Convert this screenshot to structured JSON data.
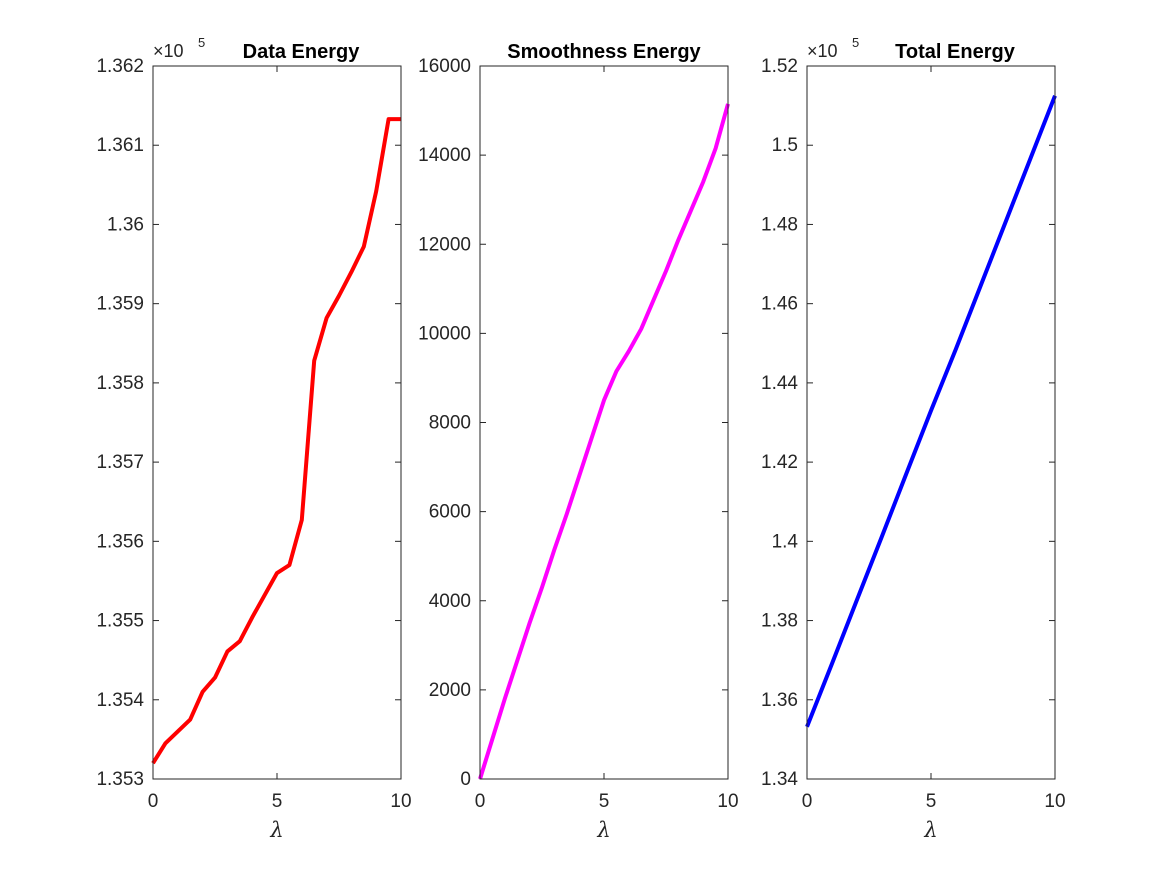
{
  "chart_data": [
    {
      "type": "line",
      "title": "Data Energy",
      "xlabel": "λ",
      "ylabel": "",
      "exponent_label": "×10",
      "exponent_power": "5",
      "color": "#ff0000",
      "xlim": [
        0,
        10
      ],
      "ylim": [
        135300,
        136200
      ],
      "x_ticks": [
        0,
        5,
        10
      ],
      "x_tick_labels": [
        "0",
        "5",
        "10"
      ],
      "y_ticks": [
        135300,
        135400,
        135500,
        135600,
        135700,
        135800,
        135900,
        136000,
        136100,
        136200
      ],
      "y_tick_labels": [
        "1.353",
        "1.354",
        "1.355",
        "1.356",
        "1.357",
        "1.358",
        "1.359",
        "1.36",
        "1.361",
        "1.362"
      ],
      "x": [
        0,
        0.5,
        1,
        1.5,
        2,
        2.5,
        3,
        3.5,
        4,
        4.5,
        5,
        5.5,
        6,
        6.5,
        7,
        7.5,
        8,
        8.5,
        9,
        9.5,
        10
      ],
      "y": [
        135320,
        135345,
        135360,
        135375,
        135410,
        135428,
        135461,
        135474,
        135504,
        135532,
        135560,
        135570,
        135627,
        135828,
        135882,
        135910,
        135940,
        135972,
        136042,
        136133,
        136133
      ]
    },
    {
      "type": "line",
      "title": "Smoothness Energy",
      "xlabel": "λ",
      "ylabel": "",
      "color": "#ff00ff",
      "xlim": [
        0,
        10
      ],
      "ylim": [
        0,
        16000
      ],
      "x_ticks": [
        0,
        5,
        10
      ],
      "x_tick_labels": [
        "0",
        "5",
        "10"
      ],
      "y_ticks": [
        0,
        2000,
        4000,
        6000,
        8000,
        10000,
        12000,
        14000,
        16000
      ],
      "y_tick_labels": [
        "0",
        "2000",
        "4000",
        "6000",
        "8000",
        "10000",
        "12000",
        "14000",
        "16000"
      ],
      "x": [
        0,
        0.5,
        1,
        1.5,
        2,
        2.5,
        3,
        3.5,
        4,
        4.5,
        5,
        5.5,
        6,
        6.5,
        7,
        7.5,
        8,
        8.5,
        9,
        9.5,
        10
      ],
      "y": [
        0,
        900,
        1800,
        2650,
        3500,
        4300,
        5150,
        5950,
        6800,
        7650,
        8500,
        9150,
        9600,
        10100,
        10750,
        11400,
        12100,
        12750,
        13400,
        14150,
        15150
      ]
    },
    {
      "type": "line",
      "title": "Total Energy",
      "xlabel": "λ",
      "ylabel": "",
      "exponent_label": "×10",
      "exponent_power": "5",
      "color": "#0000ff",
      "xlim": [
        0,
        10
      ],
      "ylim": [
        134000,
        152000
      ],
      "x_ticks": [
        0,
        5,
        10
      ],
      "x_tick_labels": [
        "0",
        "5",
        "10"
      ],
      "y_ticks": [
        134000,
        136000,
        138000,
        140000,
        142000,
        144000,
        146000,
        148000,
        150000,
        152000
      ],
      "y_tick_labels": [
        "1.34",
        "1.36",
        "1.38",
        "1.4",
        "1.42",
        "1.44",
        "1.46",
        "1.48",
        "1.5",
        "1.52"
      ],
      "x": [
        0,
        1,
        2,
        3,
        4,
        5,
        6,
        7,
        8,
        9,
        10
      ],
      "y": [
        135320,
        136900,
        138500,
        140090,
        141700,
        143300,
        144850,
        146450,
        148050,
        149650,
        151250
      ]
    }
  ]
}
